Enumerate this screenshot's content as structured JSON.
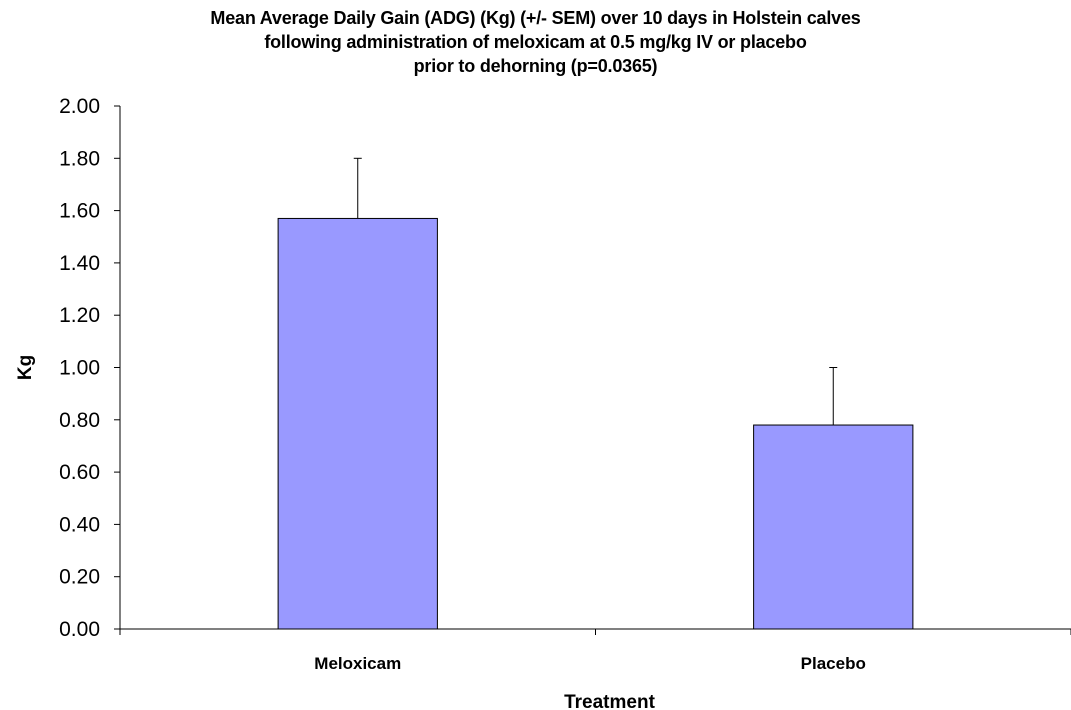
{
  "chart_data": {
    "type": "bar",
    "title": [
      "Mean Average Daily Gain (ADG) (Kg) (+/- SEM) over 10 days in Holstein calves",
      "following administration of meloxicam at 0.5 mg/kg IV or placebo",
      "prior to dehorning (p=0.0365)"
    ],
    "xlabel": "Treatment",
    "ylabel": "Kg",
    "categories": [
      "Meloxicam",
      "Placebo"
    ],
    "values": [
      1.57,
      0.78
    ],
    "error_upper": [
      0.23,
      0.22
    ],
    "ylim": [
      0,
      2
    ],
    "yticks": [
      "0.00",
      "0.20",
      "0.40",
      "0.60",
      "0.80",
      "1.00",
      "1.20",
      "1.40",
      "1.60",
      "1.80",
      "2.00"
    ],
    "grid": false,
    "legend": "none",
    "bar_color": "#9999ff",
    "bar_outline_color": "#000000"
  }
}
